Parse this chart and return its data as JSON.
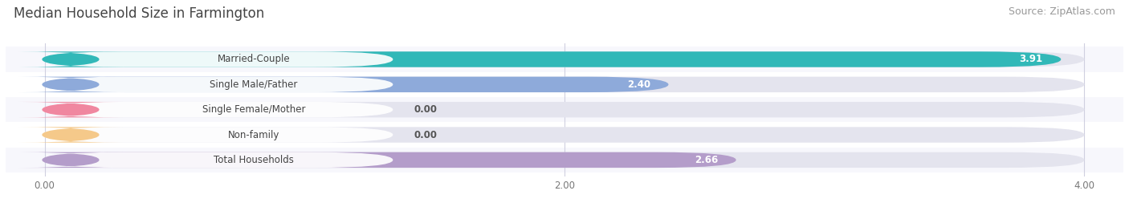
{
  "title": "Median Household Size in Farmington",
  "source": "Source: ZipAtlas.com",
  "categories": [
    "Married-Couple",
    "Single Male/Father",
    "Single Female/Mother",
    "Non-family",
    "Total Households"
  ],
  "values": [
    3.91,
    2.4,
    0.0,
    0.0,
    2.66
  ],
  "bar_colors": [
    "#31b8b8",
    "#8eaada",
    "#f087a0",
    "#f5c98a",
    "#b49dca"
  ],
  "track_color": "#e4e4ee",
  "bg_color": "#ffffff",
  "row_bg_colors": [
    "#f7f7fc",
    "#ffffff",
    "#f7f7fc",
    "#ffffff",
    "#f7f7fc"
  ],
  "xlim_min": 0.0,
  "xlim_max": 4.0,
  "xticks": [
    0.0,
    2.0,
    4.0
  ],
  "xtick_labels": [
    "0.00",
    "2.00",
    "4.00"
  ],
  "title_fontsize": 12,
  "source_fontsize": 9,
  "label_fontsize": 8.5,
  "value_fontsize": 8.5,
  "figsize": [
    14.06,
    2.68
  ],
  "dpi": 100
}
